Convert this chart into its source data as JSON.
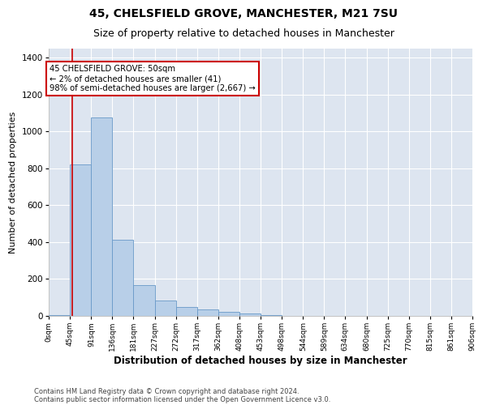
{
  "title1": "45, CHELSFIELD GROVE, MANCHESTER, M21 7SU",
  "title2": "Size of property relative to detached houses in Manchester",
  "xlabel": "Distribution of detached houses by size in Manchester",
  "ylabel": "Number of detached properties",
  "bar_color": "#b8cfe8",
  "bar_edge_color": "#6899c8",
  "background_color": "#dde5f0",
  "annotation_box_color": "#cc0000",
  "property_line_color": "#cc0000",
  "property_sqm": 50,
  "annotation_text_line1": "45 CHELSFIELD GROVE: 50sqm",
  "annotation_text_line2": "← 2% of detached houses are smaller (41)",
  "annotation_text_line3": "98% of semi-detached houses are larger (2,667) →",
  "footer_line1": "Contains HM Land Registry data © Crown copyright and database right 2024.",
  "footer_line2": "Contains public sector information licensed under the Open Government Licence v3.0.",
  "bin_edges": [
    0,
    45,
    91,
    136,
    181,
    227,
    272,
    317,
    362,
    408,
    453,
    498,
    544,
    589,
    634,
    680,
    725,
    770,
    815,
    861,
    906
  ],
  "bin_heights": [
    5,
    820,
    1075,
    415,
    165,
    85,
    48,
    35,
    20,
    12,
    5,
    2,
    0,
    0,
    0,
    0,
    0,
    0,
    0,
    0
  ],
  "ylim": [
    0,
    1450
  ],
  "yticks": [
    0,
    200,
    400,
    600,
    800,
    1000,
    1200,
    1400
  ],
  "grid_color": "#ffffff",
  "title1_fontsize": 10,
  "title2_fontsize": 9,
  "xlabel_fontsize": 8.5,
  "ylabel_fontsize": 8
}
